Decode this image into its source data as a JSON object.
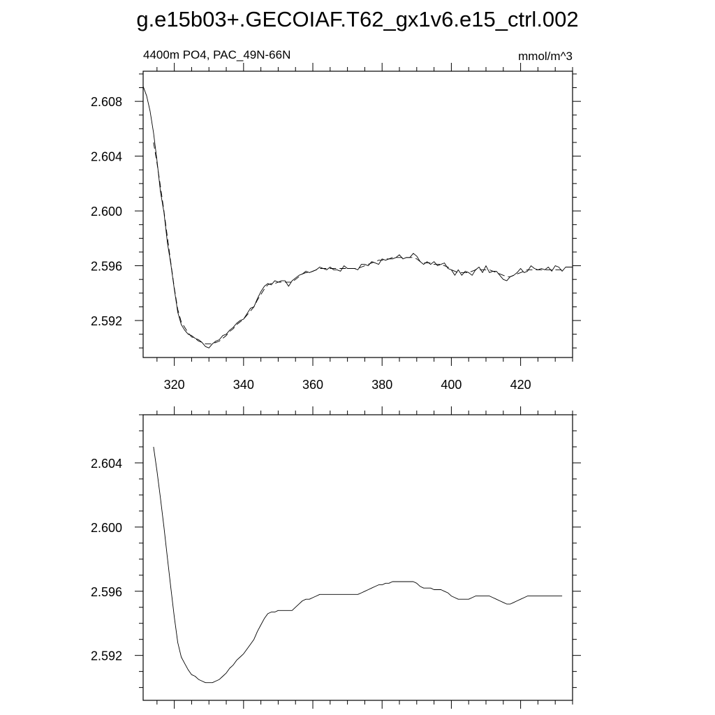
{
  "title": "g.e15b03+.GECOIAF.T62_gx1v6.e15_ctrl.002",
  "chart_data": [
    {
      "type": "line",
      "subtitle_left": "4400m PO4, PAC_49N-66N",
      "subtitle_right": "mmol/m^3",
      "xlim": [
        311,
        435
      ],
      "ylim": [
        2.5893,
        2.6102
      ],
      "xticks": [
        320,
        340,
        360,
        380,
        400,
        420
      ],
      "xtick_labels": [
        "320",
        "340",
        "360",
        "380",
        "400",
        "420"
      ],
      "yticks": [
        2.592,
        2.596,
        2.6,
        2.604,
        2.608
      ],
      "ytick_labels": [
        "2.592",
        "2.596",
        "2.600",
        "2.604",
        "2.608"
      ],
      "series": [
        {
          "style": "solid",
          "x": [
            311,
            312,
            313,
            314,
            315,
            316,
            317,
            318,
            319,
            320,
            321,
            322,
            323,
            324,
            325,
            326,
            327,
            328,
            329,
            330,
            331,
            332,
            333,
            334,
            335,
            336,
            337,
            338,
            339,
            340,
            341,
            342,
            343,
            344,
            345,
            346,
            347,
            348,
            349,
            350,
            351,
            352,
            353,
            354,
            355,
            356,
            357,
            358,
            359,
            360,
            361,
            362,
            363,
            364,
            365,
            366,
            367,
            368,
            369,
            370,
            371,
            372,
            373,
            374,
            375,
            376,
            377,
            378,
            379,
            380,
            381,
            382,
            383,
            384,
            385,
            386,
            387,
            388,
            389,
            390,
            391,
            392,
            393,
            394,
            395,
            396,
            397,
            398,
            399,
            400,
            401,
            402,
            403,
            404,
            405,
            406,
            407,
            408,
            409,
            410,
            411,
            412,
            413,
            414,
            415,
            416,
            417,
            418,
            419,
            420,
            421,
            422,
            423,
            424,
            425,
            426,
            427,
            428,
            429,
            430,
            431,
            432,
            433,
            434,
            435
          ],
          "y": [
            2.6091,
            2.6084,
            2.6073,
            2.6057,
            2.6037,
            2.6014,
            2.5999,
            2.5977,
            2.5961,
            2.5943,
            2.5926,
            2.5917,
            2.5913,
            2.591,
            2.5909,
            2.5907,
            2.5906,
            2.5904,
            2.5901,
            2.59,
            2.5903,
            2.5905,
            2.5906,
            2.5909,
            2.591,
            2.5913,
            2.5915,
            2.5918,
            2.592,
            2.5921,
            2.5925,
            2.5929,
            2.593,
            2.5936,
            2.5941,
            2.5945,
            2.5947,
            2.5946,
            2.5949,
            2.5948,
            2.5949,
            2.5949,
            2.5945,
            2.5949,
            2.5951,
            2.5953,
            2.5954,
            2.5956,
            2.5955,
            2.5956,
            2.5957,
            2.5959,
            2.5958,
            2.5957,
            2.5959,
            2.5957,
            2.5957,
            2.5956,
            2.596,
            2.5958,
            2.5958,
            2.5958,
            2.5957,
            2.5961,
            2.5961,
            2.596,
            2.5963,
            2.5962,
            2.5961,
            2.5965,
            2.5964,
            2.5965,
            2.5965,
            2.5966,
            2.5968,
            2.5965,
            2.5966,
            2.5966,
            2.5969,
            2.5967,
            2.5963,
            2.5961,
            2.5963,
            2.5961,
            2.5963,
            2.596,
            2.5961,
            2.5962,
            2.5958,
            2.5957,
            2.5953,
            2.5957,
            2.5953,
            2.5956,
            2.5955,
            2.5953,
            2.5957,
            2.5959,
            2.5955,
            2.596,
            2.5955,
            2.5956,
            2.5956,
            2.5953,
            2.595,
            2.5949,
            2.5952,
            2.5953,
            2.5955,
            2.5958,
            2.5955,
            2.5956,
            2.596,
            2.5958,
            2.5957,
            2.5958,
            2.5957,
            2.5959,
            2.5956,
            2.596,
            2.5959,
            2.5956,
            2.5959,
            2.5959,
            2.5959
          ]
        },
        {
          "style": "dashed",
          "x": [
            314,
            315,
            316,
            317,
            318,
            319,
            320,
            321,
            322,
            323,
            324,
            325,
            326,
            327,
            328,
            329,
            330,
            331,
            332,
            333,
            334,
            335,
            336,
            337,
            338,
            339,
            340,
            341,
            342,
            343,
            344,
            345,
            346,
            347,
            348,
            349,
            350,
            351,
            352,
            353,
            354,
            355,
            356,
            357,
            358,
            359,
            360,
            361,
            362,
            363,
            364,
            365,
            366,
            367,
            368,
            369,
            370,
            371,
            372,
            373,
            374,
            375,
            376,
            377,
            378,
            379,
            380,
            381,
            382,
            383,
            384,
            385,
            386,
            387,
            388,
            389,
            390,
            391,
            392,
            393,
            394,
            395,
            396,
            397,
            398,
            399,
            400,
            401,
            402,
            403,
            404,
            405,
            406,
            407,
            408,
            409,
            410,
            411,
            412,
            413,
            414,
            415,
            416,
            417,
            418,
            419,
            420,
            421,
            422,
            423,
            424,
            425,
            426,
            427,
            428,
            429,
            430,
            431,
            432
          ],
          "y": [
            2.605,
            2.6035,
            2.6018,
            2.6,
            2.5981,
            2.5962,
            2.5944,
            2.5928,
            2.5919,
            2.5915,
            2.5911,
            2.5908,
            2.5907,
            2.5905,
            2.5904,
            2.5903,
            2.5903,
            2.5903,
            2.5904,
            2.5905,
            2.5907,
            2.5909,
            2.5912,
            2.5914,
            2.5917,
            2.5919,
            2.5921,
            2.5924,
            2.5927,
            2.593,
            2.5935,
            2.5939,
            2.5943,
            2.5946,
            2.5947,
            2.5947,
            2.5948,
            2.5948,
            2.5948,
            2.5948,
            2.5948,
            2.595,
            2.5952,
            2.5954,
            2.5955,
            2.5955,
            2.5956,
            2.5957,
            2.5958,
            2.5958,
            2.5958,
            2.5958,
            2.5958,
            2.5958,
            2.5958,
            2.5958,
            2.5958,
            2.5958,
            2.5958,
            2.5958,
            2.5959,
            2.596,
            2.5961,
            2.5962,
            2.5963,
            2.5964,
            2.5964,
            2.5965,
            2.5965,
            2.5966,
            2.5966,
            2.5966,
            2.5966,
            2.5966,
            2.5966,
            2.5966,
            2.5965,
            2.5963,
            2.5962,
            2.5962,
            2.5962,
            2.5961,
            2.5961,
            2.5961,
            2.596,
            2.5959,
            2.5957,
            2.5956,
            2.5955,
            2.5955,
            2.5955,
            2.5955,
            2.5956,
            2.5957,
            2.5957,
            2.5957,
            2.5957,
            2.5957,
            2.5956,
            2.5955,
            2.5954,
            2.5953,
            2.5952,
            2.5952,
            2.5953,
            2.5954,
            2.5955,
            2.5956,
            2.5957,
            2.5957,
            2.5957,
            2.5957,
            2.5957,
            2.5957,
            2.5957,
            2.5957,
            2.5957,
            2.5957,
            2.5957
          ]
        }
      ]
    },
    {
      "type": "line",
      "xlim": [
        311,
        435
      ],
      "ylim": [
        2.5892,
        2.607
      ],
      "xticks": [
        320,
        340,
        360,
        380,
        400,
        420
      ],
      "yticks": [
        2.592,
        2.596,
        2.6,
        2.604
      ],
      "ytick_labels": [
        "2.592",
        "2.596",
        "2.600",
        "2.604"
      ],
      "series": [
        {
          "style": "solid",
          "x": [
            314,
            315,
            316,
            317,
            318,
            319,
            320,
            321,
            322,
            323,
            324,
            325,
            326,
            327,
            328,
            329,
            330,
            331,
            332,
            333,
            334,
            335,
            336,
            337,
            338,
            339,
            340,
            341,
            342,
            343,
            344,
            345,
            346,
            347,
            348,
            349,
            350,
            351,
            352,
            353,
            354,
            355,
            356,
            357,
            358,
            359,
            360,
            361,
            362,
            363,
            364,
            365,
            366,
            367,
            368,
            369,
            370,
            371,
            372,
            373,
            374,
            375,
            376,
            377,
            378,
            379,
            380,
            381,
            382,
            383,
            384,
            385,
            386,
            387,
            388,
            389,
            390,
            391,
            392,
            393,
            394,
            395,
            396,
            397,
            398,
            399,
            400,
            401,
            402,
            403,
            404,
            405,
            406,
            407,
            408,
            409,
            410,
            411,
            412,
            413,
            414,
            415,
            416,
            417,
            418,
            419,
            420,
            421,
            422,
            423,
            424,
            425,
            426,
            427,
            428,
            429,
            430,
            431,
            432
          ],
          "y": [
            2.605,
            2.6035,
            2.6018,
            2.6,
            2.5981,
            2.5962,
            2.5944,
            2.5928,
            2.5919,
            2.5915,
            2.5911,
            2.5908,
            2.5907,
            2.5905,
            2.5904,
            2.5903,
            2.5903,
            2.5903,
            2.5904,
            2.5905,
            2.5907,
            2.5909,
            2.5912,
            2.5914,
            2.5917,
            2.5919,
            2.5921,
            2.5924,
            2.5927,
            2.593,
            2.5935,
            2.5939,
            2.5943,
            2.5946,
            2.5947,
            2.5947,
            2.5948,
            2.5948,
            2.5948,
            2.5948,
            2.5948,
            2.595,
            2.5952,
            2.5954,
            2.5955,
            2.5955,
            2.5956,
            2.5957,
            2.5958,
            2.5958,
            2.5958,
            2.5958,
            2.5958,
            2.5958,
            2.5958,
            2.5958,
            2.5958,
            2.5958,
            2.5958,
            2.5958,
            2.5959,
            2.596,
            2.5961,
            2.5962,
            2.5963,
            2.5964,
            2.5964,
            2.5965,
            2.5965,
            2.5966,
            2.5966,
            2.5966,
            2.5966,
            2.5966,
            2.5966,
            2.5966,
            2.5965,
            2.5963,
            2.5962,
            2.5962,
            2.5962,
            2.5961,
            2.5961,
            2.5961,
            2.596,
            2.5959,
            2.5957,
            2.5956,
            2.5955,
            2.5955,
            2.5955,
            2.5955,
            2.5956,
            2.5957,
            2.5957,
            2.5957,
            2.5957,
            2.5957,
            2.5956,
            2.5955,
            2.5954,
            2.5953,
            2.5952,
            2.5952,
            2.5953,
            2.5954,
            2.5955,
            2.5956,
            2.5957,
            2.5957,
            2.5957,
            2.5957,
            2.5957,
            2.5957,
            2.5957,
            2.5957,
            2.5957,
            2.5957,
            2.5957
          ]
        }
      ]
    }
  ]
}
